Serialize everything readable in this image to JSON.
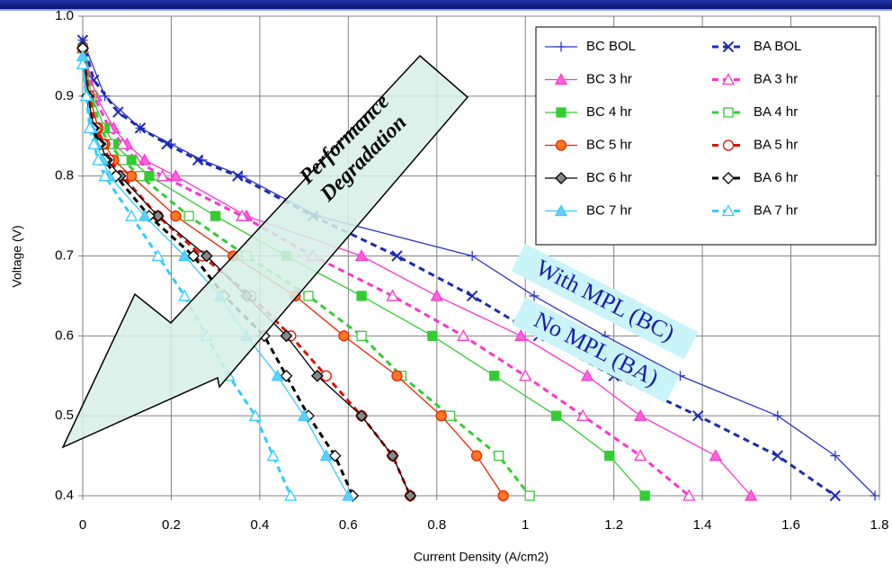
{
  "chart_data": {
    "type": "line",
    "x_label": "Current Density (A/cm2)",
    "y_label": "Voltage (V)",
    "xlim": [
      0,
      1.8
    ],
    "ylim": [
      0.4,
      1.0
    ],
    "xticks": [
      0,
      0.2,
      0.4,
      0.6,
      0.8,
      1,
      1.2,
      1.4,
      1.6,
      1.8
    ],
    "yticks": [
      0.4,
      0.5,
      0.6,
      0.7,
      0.8,
      0.9,
      {
        "value": 1,
        "label": "1.0"
      }
    ],
    "grid": true,
    "legend": "top-right",
    "annotations": [
      "Performance",
      "Degradation",
      "With MPL (BC)",
      "No MPL (BA)"
    ],
    "series": [
      {
        "name": "BC BOL",
        "color": "#2b35c8",
        "fill": "#2b35c8",
        "marker": "plus",
        "dashed": false,
        "x": [
          0,
          0.05,
          0.13,
          0.2,
          0.27,
          0.36,
          0.53,
          0.88,
          1.02,
          1.18,
          1.35,
          1.57,
          1.7,
          1.79
        ],
        "values": [
          0.97,
          0.9,
          0.86,
          0.84,
          0.82,
          0.8,
          0.75,
          0.7,
          0.65,
          0.6,
          0.55,
          0.5,
          0.45,
          0.4
        ]
      },
      {
        "name": "BA BOL",
        "color": "#1c2bb0",
        "fill": "#1c2bb0",
        "marker": "cross",
        "dashed": true,
        "x": [
          0,
          0.025,
          0.08,
          0.13,
          0.19,
          0.26,
          0.35,
          0.52,
          0.71,
          0.88,
          1.03,
          1.2,
          1.39,
          1.57,
          1.7
        ],
        "values": [
          0.97,
          0.92,
          0.88,
          0.86,
          0.84,
          0.82,
          0.8,
          0.75,
          0.7,
          0.65,
          0.6,
          0.55,
          0.5,
          0.45,
          0.4
        ]
      },
      {
        "name": "BC 3 hr",
        "color": "#ff33cc",
        "fill": "#ff66dd",
        "marker": "triangle",
        "dashed": false,
        "x": [
          0,
          0.03,
          0.07,
          0.1,
          0.14,
          0.21,
          0.37,
          0.63,
          0.8,
          0.99,
          1.14,
          1.26,
          1.43,
          1.51
        ],
        "values": [
          0.96,
          0.9,
          0.86,
          0.84,
          0.82,
          0.8,
          0.75,
          0.7,
          0.65,
          0.6,
          0.55,
          0.5,
          0.45,
          0.4
        ]
      },
      {
        "name": "BA 3 hr",
        "color": "#ff33cc",
        "fill": "#ffffff",
        "marker": "triangle",
        "dashed": true,
        "x": [
          0,
          0.025,
          0.06,
          0.09,
          0.12,
          0.18,
          0.36,
          0.52,
          0.7,
          0.86,
          1.0,
          1.13,
          1.26,
          1.37
        ],
        "values": [
          0.96,
          0.9,
          0.86,
          0.84,
          0.82,
          0.8,
          0.75,
          0.7,
          0.65,
          0.6,
          0.55,
          0.5,
          0.45,
          0.4
        ]
      },
      {
        "name": "BC 4 hr",
        "color": "#33cc33",
        "fill": "#33cc33",
        "marker": "square",
        "dashed": false,
        "x": [
          0,
          0.02,
          0.05,
          0.07,
          0.11,
          0.15,
          0.3,
          0.46,
          0.63,
          0.79,
          0.93,
          1.07,
          1.19,
          1.27
        ],
        "values": [
          0.96,
          0.9,
          0.86,
          0.84,
          0.82,
          0.8,
          0.75,
          0.7,
          0.65,
          0.6,
          0.55,
          0.5,
          0.45,
          0.4
        ]
      },
      {
        "name": "BA 4 hr",
        "color": "#33cc33",
        "fill": "#ffffff",
        "marker": "square",
        "dashed": true,
        "x": [
          0,
          0.02,
          0.04,
          0.06,
          0.09,
          0.13,
          0.24,
          0.37,
          0.51,
          0.63,
          0.72,
          0.83,
          0.94,
          1.01
        ],
        "values": [
          0.96,
          0.9,
          0.86,
          0.84,
          0.82,
          0.8,
          0.75,
          0.7,
          0.65,
          0.6,
          0.55,
          0.5,
          0.45,
          0.4
        ]
      },
      {
        "name": "BC 5 hr",
        "color": "#ee2200",
        "fill": "#ff7722",
        "marker": "circle",
        "dashed": false,
        "x": [
          0,
          0.015,
          0.035,
          0.05,
          0.07,
          0.11,
          0.21,
          0.34,
          0.48,
          0.59,
          0.71,
          0.81,
          0.89,
          0.95
        ],
        "values": [
          0.96,
          0.9,
          0.86,
          0.84,
          0.82,
          0.8,
          0.75,
          0.7,
          0.65,
          0.6,
          0.55,
          0.5,
          0.45,
          0.4
        ]
      },
      {
        "name": "BA 5 hr",
        "color": "#dd1100",
        "fill": "#ffffff",
        "marker": "circle",
        "dashed": true,
        "x": [
          0,
          0.015,
          0.03,
          0.045,
          0.06,
          0.09,
          0.17,
          0.27,
          0.38,
          0.47,
          0.55,
          0.63,
          0.7,
          0.74
        ],
        "values": [
          0.96,
          0.9,
          0.86,
          0.84,
          0.82,
          0.8,
          0.75,
          0.7,
          0.65,
          0.6,
          0.55,
          0.5,
          0.45,
          0.4
        ]
      },
      {
        "name": "BC 6 hr",
        "color": "#000000",
        "fill": "#888888",
        "marker": "diamond",
        "dashed": false,
        "x": [
          0,
          0.012,
          0.025,
          0.04,
          0.055,
          0.085,
          0.17,
          0.28,
          0.37,
          0.46,
          0.53,
          0.63,
          0.7,
          0.74
        ],
        "values": [
          0.96,
          0.9,
          0.86,
          0.84,
          0.82,
          0.8,
          0.75,
          0.7,
          0.65,
          0.6,
          0.55,
          0.5,
          0.45,
          0.4
        ]
      },
      {
        "name": "BA 6 hr",
        "color": "#000000",
        "fill": "#ffffff",
        "marker": "diamond",
        "dashed": true,
        "x": [
          0,
          0.01,
          0.022,
          0.035,
          0.05,
          0.075,
          0.15,
          0.25,
          0.32,
          0.41,
          0.46,
          0.51,
          0.57,
          0.61
        ],
        "values": [
          0.96,
          0.9,
          0.86,
          0.84,
          0.82,
          0.8,
          0.75,
          0.7,
          0.65,
          0.6,
          0.55,
          0.5,
          0.45,
          0.4
        ]
      },
      {
        "name": "BC 7 hr",
        "color": "#33ccff",
        "fill": "#66ccff",
        "marker": "triangle",
        "dashed": false,
        "x": [
          0,
          0.01,
          0.02,
          0.03,
          0.045,
          0.06,
          0.14,
          0.23,
          0.31,
          0.37,
          0.44,
          0.5,
          0.55,
          0.6
        ],
        "values": [
          0.95,
          0.9,
          0.86,
          0.84,
          0.82,
          0.8,
          0.75,
          0.7,
          0.65,
          0.6,
          0.55,
          0.5,
          0.45,
          0.4
        ]
      },
      {
        "name": "BA 7 hr",
        "color": "#33ccff",
        "fill": "#ffffff",
        "marker": "triangle",
        "dashed": true,
        "x": [
          0,
          0.008,
          0.016,
          0.025,
          0.035,
          0.05,
          0.11,
          0.17,
          0.23,
          0.28,
          0.33,
          0.39,
          0.43,
          0.47
        ],
        "values": [
          0.94,
          0.9,
          0.86,
          0.84,
          0.82,
          0.8,
          0.75,
          0.7,
          0.65,
          0.6,
          0.55,
          0.5,
          0.45,
          0.4
        ]
      }
    ]
  }
}
